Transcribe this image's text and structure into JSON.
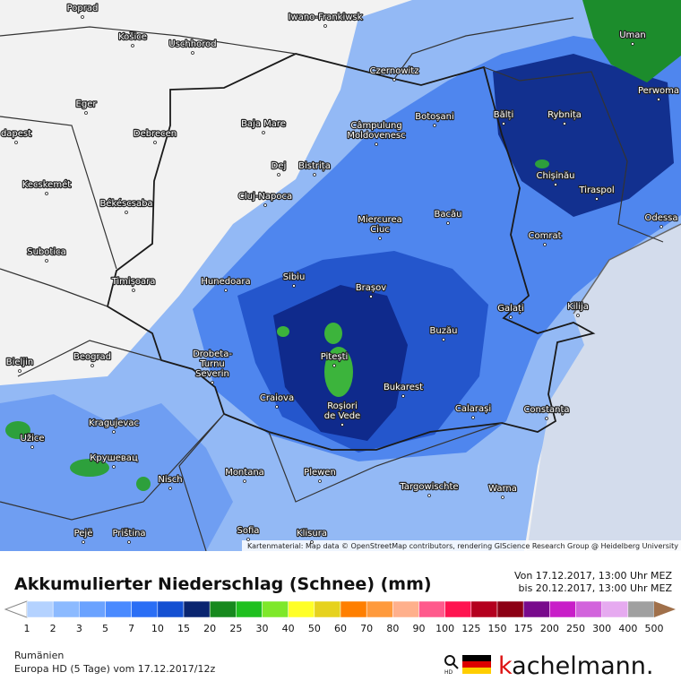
{
  "map": {
    "cities": [
      [
        "Poprad"
      ],
      [
        "Košice"
      ],
      [
        "Uschhorod"
      ],
      [
        "Iwano-Frankiwsk"
      ],
      [
        "Uman"
      ],
      [
        "Czernowitz"
      ],
      [
        "Perwoma"
      ],
      [
        "Eger"
      ],
      [
        "Baja Mare"
      ],
      [
        "Bălți"
      ],
      [
        "Rybnița"
      ],
      [
        "Botoșani"
      ],
      [
        "Câmpulung",
        "Moldovenesc"
      ],
      [
        "Debrecen"
      ],
      [
        "dapest"
      ],
      [
        "Dej"
      ],
      [
        "Bistrița"
      ],
      [
        "Chișinău"
      ],
      [
        "Kecskemét"
      ],
      [
        "Tiraspol"
      ],
      [
        "Békéscsaba"
      ],
      [
        "Cluj-Napoca"
      ],
      [
        "Miercurea",
        "Ciuc"
      ],
      [
        "Bacău"
      ],
      [
        "Odessa"
      ],
      [
        "Comrat"
      ],
      [
        "Subotica"
      ],
      [
        "Timișoara"
      ],
      [
        "Hunedoara"
      ],
      [
        "Sibiu"
      ],
      [
        "Brașov"
      ],
      [
        "Galați"
      ],
      [
        "Kilija"
      ],
      [
        "Buzău"
      ],
      [
        "Beograd"
      ],
      [
        "Drobeta-",
        "Turnu",
        "Severin"
      ],
      [
        "Pitești"
      ],
      [
        "Bieljin"
      ],
      [
        "Bukarest"
      ],
      [
        "Craiova"
      ],
      [
        "Roșiori",
        "de Vede"
      ],
      [
        "Calarași"
      ],
      [
        "Constanța"
      ],
      [
        "Kragujevac"
      ],
      [
        "Užice"
      ],
      [
        "Крушевац"
      ],
      [
        "Nisch"
      ],
      [
        "Montana"
      ],
      [
        "Plewen"
      ],
      [
        "Targowischte"
      ],
      [
        "Warna"
      ],
      [
        "Pejë"
      ],
      [
        "Priština"
      ],
      [
        "Sofia"
      ],
      [
        "Klisura"
      ]
    ],
    "attribution": "Kartenmaterial: Map data © OpenStreetMap contributors, rendering GIScience Research Group @ Heidelberg University"
  },
  "legend": {
    "title": "Akkumulierter Niederschlag (Schnee) (mm)",
    "from": "Von 17.12.2017, 13:00 Uhr MEZ",
    "to": "bis 20.12.2017, 13:00 Uhr MEZ",
    "values": [
      1,
      2,
      3,
      5,
      7,
      10,
      15,
      20,
      25,
      30,
      40,
      50,
      60,
      70,
      80,
      90,
      100,
      125,
      150,
      175,
      200,
      250,
      300,
      400,
      500
    ],
    "colors": [
      "#b4d2ff",
      "#8cbaff",
      "#6aa2ff",
      "#4a8aff",
      "#2a6ef5",
      "#1450d2",
      "#0a2570",
      "#17891e",
      "#1fc01f",
      "#7ee82a",
      "#ffff28",
      "#e6d21e",
      "#ff7f00",
      "#ff9a3c",
      "#ffb08c",
      "#ff5a8c",
      "#ff1450",
      "#b4001e",
      "#8c0014",
      "#780a8c",
      "#c81ec8",
      "#d264dc",
      "#e6aaf0",
      "#ffffff"
    ],
    "under_color": "#ffffff",
    "over_color": "#a0704a",
    "top_color": "#a0a0a0"
  },
  "footer": {
    "region": "Rumänien",
    "model": "Europa HD (5 Tage) vom 17.12.2017/12z",
    "hd": "HD",
    "brand_k": "k",
    "brand": "achelmann."
  }
}
